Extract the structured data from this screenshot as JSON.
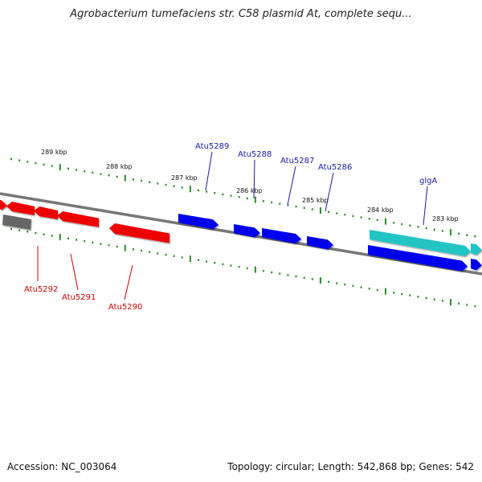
{
  "title": "Agrobacterium tumefaciens str. C58 plasmid At, complete sequ...",
  "footer": {
    "accession": "Accession: NC_003064",
    "summary": "Topology: circular; Length: 542,868 bp; Genes: 542"
  },
  "ticks": [
    "289 kbp",
    "288 kbp",
    "287 kbp",
    "286 kbp",
    "285 kbp",
    "284 kbp",
    "283 kbp"
  ],
  "genes": {
    "plus": [
      "Atu5289",
      "Atu5288",
      "Atu5287",
      "Atu5286",
      "glgA"
    ],
    "minus": [
      "Atu5292",
      "Atu5291",
      "Atu5290"
    ]
  },
  "colors": {
    "backbone": "#808080",
    "gene_blue": "#0000ee",
    "gene_red": "#ee0000",
    "gene_cyan": "#22c4c4",
    "gene_gray": "#666666",
    "tick_green": "#2a8a2a",
    "label_blue": "#1a1aa6",
    "label_red": "#cc0000"
  }
}
